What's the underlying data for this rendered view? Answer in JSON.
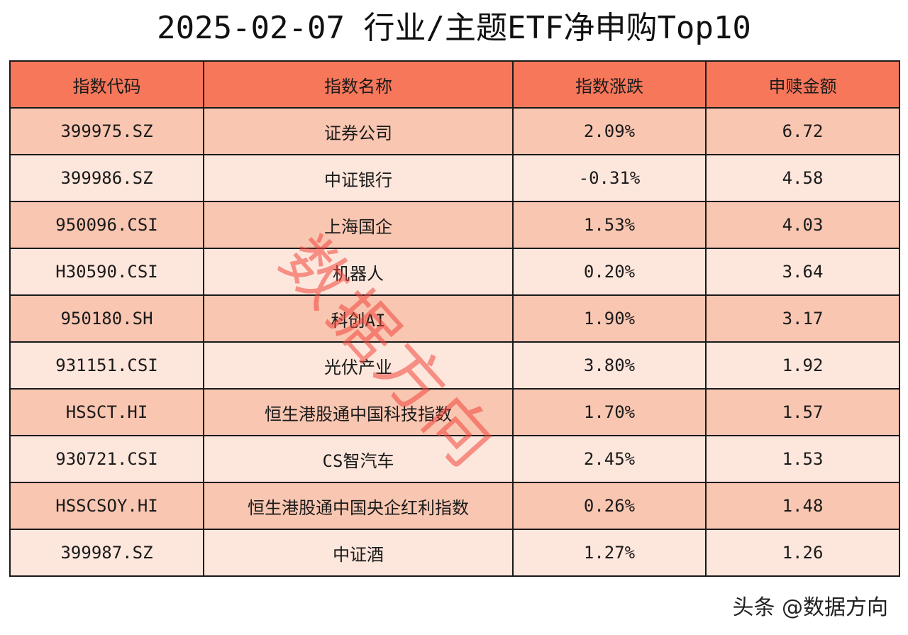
{
  "title": "2025-02-07 行业/主题ETF净申购Top10",
  "table": {
    "headers": [
      "指数代码",
      "指数名称",
      "指数涨跌",
      "申赎金额"
    ],
    "rows": [
      {
        "code": "399975.SZ",
        "name": "证券公司",
        "change": "2.09%",
        "amount": "6.72"
      },
      {
        "code": "399986.SZ",
        "name": "中证银行",
        "change": "-0.31%",
        "amount": "4.58"
      },
      {
        "code": "950096.CSI",
        "name": "上海国企",
        "change": "1.53%",
        "amount": "4.03"
      },
      {
        "code": "H30590.CSI",
        "name": "机器人",
        "change": "0.20%",
        "amount": "3.64"
      },
      {
        "code": "950180.SH",
        "name": "科创AI",
        "change": "1.90%",
        "amount": "3.17"
      },
      {
        "code": "931151.CSI",
        "name": "光伏产业",
        "change": "3.80%",
        "amount": "1.92"
      },
      {
        "code": "HSSCT.HI",
        "name": "恒生港股通中国科技指数",
        "change": "1.70%",
        "amount": "1.57"
      },
      {
        "code": "930721.CSI",
        "name": "CS智汽车",
        "change": "2.45%",
        "amount": "1.53"
      },
      {
        "code": "HSSCSOY.HI",
        "name": "恒生港股通中国央企红利指数",
        "change": "0.26%",
        "amount": "1.48"
      },
      {
        "code": "399987.SZ",
        "name": "中证酒",
        "change": "1.27%",
        "amount": "1.26"
      }
    ]
  },
  "watermark": "数据方向",
  "footer": "头条 @数据方向",
  "colors": {
    "header_bg": "#f7775a",
    "row_odd_bg": "#f9c6b1",
    "row_even_bg": "#fde6dc",
    "watermark": "#f0463c"
  }
}
